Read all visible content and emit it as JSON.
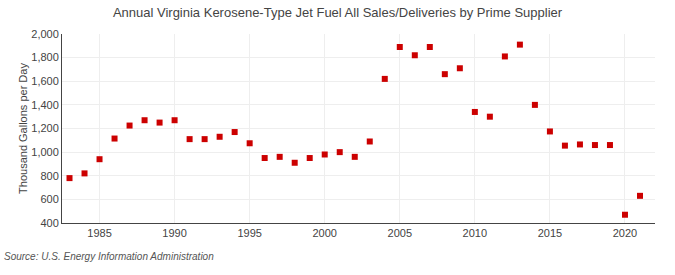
{
  "chart_data": {
    "type": "scatter",
    "title": "Annual Virginia Kerosene-Type Jet Fuel All Sales/Deliveries by Prime Supplier",
    "ylabel": "Thousand Gallons per Day",
    "annotations": [
      "Source: U.S. Energy Information Administration"
    ],
    "x": [
      1983,
      1984,
      1985,
      1986,
      1987,
      1988,
      1989,
      1990,
      1991,
      1992,
      1993,
      1994,
      1995,
      1996,
      1997,
      1998,
      1999,
      2000,
      2001,
      2002,
      2003,
      2004,
      2005,
      2006,
      2007,
      2008,
      2009,
      2010,
      2011,
      2012,
      2013,
      2014,
      2015,
      2016,
      2017,
      2018,
      2019,
      2020,
      2021
    ],
    "values": [
      780,
      820,
      940,
      1115,
      1225,
      1270,
      1250,
      1270,
      1110,
      1110,
      1130,
      1170,
      1075,
      950,
      960,
      910,
      950,
      980,
      1000,
      960,
      1090,
      1620,
      1890,
      1820,
      1890,
      1660,
      1710,
      1340,
      1300,
      1810,
      1910,
      1400,
      1175,
      1055,
      1065,
      1060,
      1060,
      470,
      630
    ],
    "color": "#cc0000",
    "marker": "square",
    "xlim": [
      1982.5,
      2022
    ],
    "xticks": [
      1985,
      1990,
      1995,
      2000,
      2005,
      2010,
      2015,
      2020
    ],
    "ylim": [
      400,
      2000
    ],
    "yticks": [
      400,
      600,
      800,
      {
        "value": 1000,
        "label": "1,000"
      },
      {
        "value": 1200,
        "label": "1,200"
      },
      {
        "value": 1400,
        "label": "1,400"
      },
      {
        "value": 1600,
        "label": "1,600"
      },
      {
        "value": 1800,
        "label": "1,800"
      },
      {
        "value": 2000,
        "label": "2,000"
      }
    ],
    "grid": true
  }
}
